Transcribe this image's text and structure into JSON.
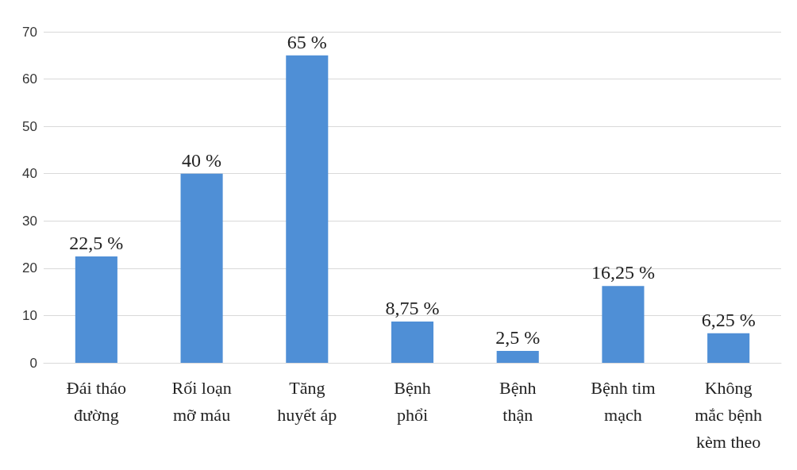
{
  "chart_data": {
    "type": "bar",
    "categories": [
      "Đái tháo\nđường",
      "Rối loạn\nmỡ máu",
      "Tăng\nhuyết áp",
      "Bệnh\nphổi",
      "Bệnh\nthận",
      "Bệnh tim\nmạch",
      "Không\nmắc bệnh\nkèm theo"
    ],
    "values": [
      22.5,
      40,
      65,
      8.75,
      2.5,
      16.25,
      6.25
    ],
    "value_labels": [
      "22,5 %",
      "40 %",
      "65 %",
      "8,75 %",
      "2,5 %",
      "16,25 %",
      "6,25 %"
    ],
    "color": "#4f8fd6",
    "ylim": [
      0,
      70
    ],
    "yticks": [
      0,
      10,
      20,
      30,
      40,
      50,
      60,
      70
    ],
    "grid": "y"
  }
}
